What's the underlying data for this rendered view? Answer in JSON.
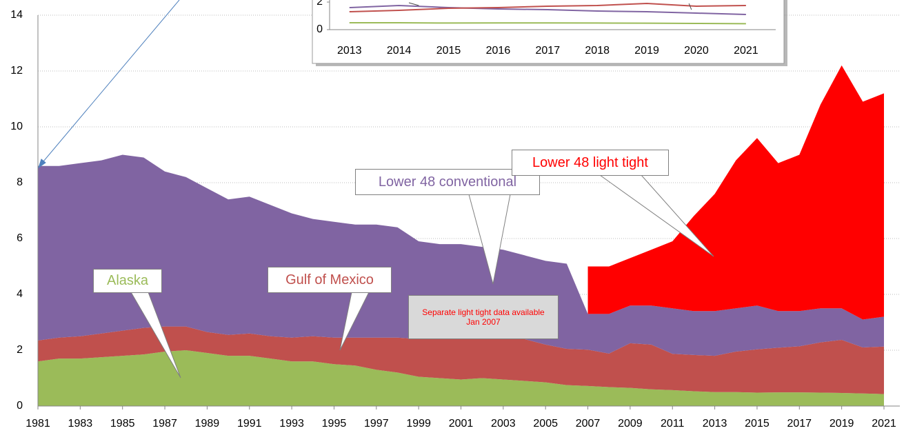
{
  "chart_data": [
    {
      "type": "stacked-area",
      "x": [
        1981,
        1982,
        1983,
        1984,
        1985,
        1986,
        1987,
        1988,
        1989,
        1990,
        1991,
        1992,
        1993,
        1994,
        1995,
        1996,
        1997,
        1998,
        1999,
        2000,
        2001,
        2002,
        2003,
        2004,
        2005,
        2006,
        2007,
        2008,
        2009,
        2010,
        2011,
        2012,
        2013,
        2014,
        2015,
        2016,
        2017,
        2018,
        2019,
        2020,
        2021
      ],
      "series": [
        {
          "name": "Alaska",
          "color": "#9bbb59",
          "values": [
            1.6,
            1.7,
            1.7,
            1.75,
            1.8,
            1.85,
            1.95,
            2.0,
            1.9,
            1.8,
            1.8,
            1.7,
            1.6,
            1.6,
            1.5,
            1.45,
            1.3,
            1.2,
            1.05,
            1.0,
            0.95,
            1.0,
            0.95,
            0.9,
            0.85,
            0.75,
            0.72,
            0.68,
            0.65,
            0.6,
            0.57,
            0.53,
            0.5,
            0.5,
            0.48,
            0.49,
            0.49,
            0.48,
            0.47,
            0.45,
            0.43
          ]
        },
        {
          "name": "Gulf of Mexico",
          "color": "#c0504d",
          "values": [
            0.75,
            0.75,
            0.8,
            0.85,
            0.9,
            0.95,
            0.9,
            0.85,
            0.75,
            0.75,
            0.8,
            0.8,
            0.85,
            0.9,
            0.95,
            1.0,
            1.15,
            1.25,
            1.35,
            1.4,
            1.5,
            1.55,
            1.55,
            1.5,
            1.35,
            1.3,
            1.3,
            1.2,
            1.6,
            1.6,
            1.3,
            1.3,
            1.3,
            1.45,
            1.55,
            1.6,
            1.65,
            1.8,
            1.9,
            1.65,
            1.7
          ]
        },
        {
          "name": "Lower 48 conventional",
          "color": "#8064a2",
          "values": [
            6.25,
            6.15,
            6.2,
            6.2,
            6.3,
            6.1,
            5.55,
            5.35,
            5.15,
            4.85,
            4.9,
            4.7,
            4.45,
            4.2,
            4.15,
            4.05,
            4.05,
            3.95,
            3.5,
            3.4,
            3.35,
            3.15,
            3.1,
            3.0,
            3.0,
            3.05,
            1.28,
            1.42,
            1.35,
            1.4,
            1.63,
            1.57,
            1.6,
            1.55,
            1.57,
            1.31,
            1.26,
            1.22,
            1.13,
            1.0,
            1.07
          ]
        },
        {
          "name": "Lower 48 light tight",
          "color": "#ff0000",
          "values": [
            null,
            null,
            null,
            null,
            null,
            null,
            null,
            null,
            null,
            null,
            null,
            null,
            null,
            null,
            null,
            null,
            null,
            null,
            null,
            null,
            null,
            null,
            null,
            null,
            null,
            null,
            1.7,
            1.7,
            1.7,
            2.0,
            2.4,
            3.4,
            4.2,
            5.3,
            6.0,
            5.3,
            5.6,
            7.3,
            8.7,
            7.8,
            8.0
          ]
        }
      ],
      "xlim": [
        1981,
        2021.75
      ],
      "xticks": [
        1981,
        1983,
        1985,
        1987,
        1989,
        1991,
        1993,
        1995,
        1997,
        1999,
        2001,
        2003,
        2005,
        2007,
        2009,
        2011,
        2013,
        2015,
        2017,
        2019,
        2021
      ],
      "ylim": [
        0,
        14
      ],
      "yticks": [
        0,
        2,
        4,
        6,
        8,
        10,
        12,
        14
      ],
      "grid": true,
      "annotations": [
        {
          "text": "Alaska",
          "color": "#9bbb59"
        },
        {
          "text": "Gulf of Mexico",
          "color": "#c0504d"
        },
        {
          "text": "Lower 48 conventional",
          "color": "#8064a2"
        },
        {
          "text": "Lower 48 light tight",
          "color": "#ff0000"
        },
        {
          "text": "Separate light tight data available Jan 2007",
          "color": "#ff0000"
        }
      ]
    },
    {
      "type": "line",
      "x": [
        2013,
        2014,
        2015,
        2016,
        2017,
        2018,
        2019,
        2020,
        2021
      ],
      "series": [
        {
          "color": "#8064a2",
          "values": [
            1.6,
            1.75,
            1.6,
            1.5,
            1.45,
            1.35,
            1.3,
            1.2,
            1.1
          ]
        },
        {
          "color": "#c0504d",
          "values": [
            1.3,
            1.4,
            1.55,
            1.6,
            1.7,
            1.75,
            1.9,
            1.7,
            1.75
          ]
        },
        {
          "color": "#9bbb59",
          "values": [
            0.5,
            0.5,
            0.48,
            0.49,
            0.49,
            0.48,
            0.47,
            0.45,
            0.43
          ]
        }
      ],
      "xlim": [
        2012.6,
        2021.6
      ],
      "xticks": [
        2013,
        2014,
        2015,
        2016,
        2017,
        2018,
        2019,
        2020,
        2021
      ],
      "ylim": [
        0,
        2
      ],
      "yticks": [
        0,
        2
      ]
    }
  ]
}
